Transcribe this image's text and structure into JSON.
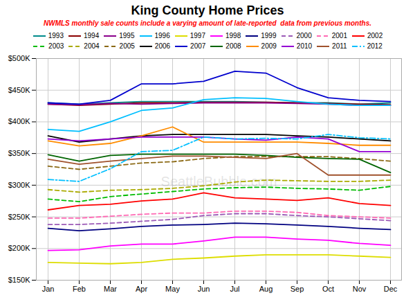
{
  "chart_data": {
    "type": "line",
    "title": "King County Home Prices",
    "subtitle": "NWMLS monthly sale counts include a varying amount of late-reported  data from previous months.",
    "annotation": "SeattleBubble.com",
    "categories": [
      "Jan",
      "Feb",
      "Mar",
      "Apr",
      "May",
      "Jun",
      "Jul",
      "Aug",
      "Sep",
      "Oct",
      "Nov",
      "Dec"
    ],
    "series": [
      {
        "name": "1993",
        "color": "#008B8B",
        "line_style": "solid",
        "values": [
          430000,
          428000,
          430000,
          432000,
          432000,
          432000,
          432000,
          431000,
          430000,
          430000,
          428000,
          430000
        ]
      },
      {
        "name": "1994",
        "color": "#8B0000",
        "line_style": "solid",
        "values": [
          428000,
          426000,
          428000,
          430000,
          430000,
          431000,
          431000,
          431000,
          430000,
          429000,
          428000,
          427000
        ]
      },
      {
        "name": "1995",
        "color": "#8B008B",
        "line_style": "solid",
        "values": [
          428000,
          427000,
          429000,
          428000,
          429000,
          430000,
          430000,
          430000,
          429000,
          428000,
          426000,
          426000
        ]
      },
      {
        "name": "1996",
        "color": "#00BFFF",
        "line_style": "solid",
        "values": [
          388000,
          385000,
          400000,
          418000,
          422000,
          435000,
          438000,
          437000,
          432000,
          428000,
          426000,
          426000
        ]
      },
      {
        "name": "1997",
        "color": "#DDDD00",
        "line_style": "solid",
        "values": [
          178000,
          177000,
          176000,
          178000,
          183000,
          185000,
          188000,
          190000,
          190000,
          190000,
          188000,
          186000
        ]
      },
      {
        "name": "1998",
        "color": "#FF00FF",
        "line_style": "solid",
        "values": [
          197000,
          198000,
          204000,
          207000,
          207000,
          212000,
          218000,
          218000,
          215000,
          213000,
          208000,
          205000
        ]
      },
      {
        "name": "1999",
        "color": "#000080",
        "line_style": "solid",
        "values": [
          232000,
          228000,
          231000,
          235000,
          237000,
          238000,
          240000,
          239000,
          237000,
          235000,
          232000,
          230000
        ]
      },
      {
        "name": "2000",
        "color": "#9B59B6",
        "line_style": "dashed",
        "values": [
          238000,
          238000,
          240000,
          243000,
          246000,
          252000,
          255000,
          255000,
          252000,
          250000,
          247000,
          244000
        ]
      },
      {
        "name": "2001",
        "color": "#FF69B4",
        "line_style": "dashed",
        "values": [
          248000,
          248000,
          251000,
          254000,
          256000,
          256000,
          259000,
          259000,
          257000,
          252000,
          250000,
          248000
        ]
      },
      {
        "name": "2002",
        "color": "#FF0000",
        "line_style": "solid",
        "values": [
          261000,
          268000,
          270000,
          275000,
          278000,
          288000,
          280000,
          278000,
          276000,
          280000,
          271000,
          268000
        ]
      },
      {
        "name": "2003",
        "color": "#00BB00",
        "line_style": "dashed",
        "values": [
          278000,
          274000,
          282000,
          286000,
          290000,
          294000,
          296000,
          297000,
          295000,
          294000,
          292000,
          298000
        ]
      },
      {
        "name": "2004",
        "color": "#AAAA00",
        "line_style": "dashed",
        "values": [
          293000,
          289000,
          292000,
          293000,
          295000,
          299000,
          305000,
          308000,
          307000,
          306000,
          306000,
          308000
        ]
      },
      {
        "name": "2005",
        "color": "#8B6914",
        "line_style": "dashed",
        "values": [
          330000,
          325000,
          330000,
          335000,
          337000,
          342000,
          345000,
          345000,
          345000,
          345000,
          342000,
          338000
        ]
      },
      {
        "name": "2006",
        "color": "#000000",
        "line_style": "solid",
        "values": [
          378000,
          368000,
          373000,
          378000,
          380000,
          380000,
          380000,
          380000,
          378000,
          376000,
          373000,
          370000
        ]
      },
      {
        "name": "2007",
        "color": "#0000CD",
        "line_style": "solid",
        "values": [
          430000,
          428000,
          434000,
          460000,
          460000,
          464000,
          480000,
          477000,
          454000,
          438000,
          434000,
          432000
        ]
      },
      {
        "name": "2008",
        "color": "#006400",
        "line_style": "solid",
        "values": [
          348000,
          338000,
          347000,
          349000,
          349000,
          349000,
          349000,
          347000,
          344000,
          342000,
          341000,
          320000
        ]
      },
      {
        "name": "2009",
        "color": "#FF8C00",
        "line_style": "solid",
        "values": [
          370000,
          362000,
          366000,
          378000,
          392000,
          368000,
          368000,
          368000,
          368000,
          366000,
          363000,
          363000
        ]
      },
      {
        "name": "2010",
        "color": "#9400D3",
        "line_style": "solid",
        "values": [
          373000,
          370000,
          373000,
          376000,
          376000,
          376000,
          373000,
          371000,
          376000,
          373000,
          353000,
          353000
        ]
      },
      {
        "name": "2011",
        "color": "#A0522D",
        "line_style": "solid",
        "values": [
          341000,
          333000,
          338000,
          342000,
          346000,
          346000,
          344000,
          342000,
          350000,
          316000,
          316000,
          316000
        ]
      },
      {
        "name": "2012",
        "color": "#00BFFF",
        "line_style": "dashdot",
        "values": [
          309000,
          306000,
          326000,
          353000,
          355000,
          376000,
          373000,
          374000,
          373000,
          380000,
          375000,
          373000
        ]
      }
    ],
    "ylim": [
      150000,
      500000
    ],
    "yticks": [
      {
        "value": 150000,
        "label": "$150K"
      },
      {
        "value": 200000,
        "label": "$200K"
      },
      {
        "value": 250000,
        "label": "$250K"
      },
      {
        "value": 300000,
        "label": "$300K"
      },
      {
        "value": 350000,
        "label": "$350K"
      },
      {
        "value": 400000,
        "label": "$400K"
      },
      {
        "value": 450000,
        "label": "$450K"
      },
      {
        "value": 500000,
        "label": "$500K"
      }
    ],
    "grid": true,
    "legend": "top"
  }
}
